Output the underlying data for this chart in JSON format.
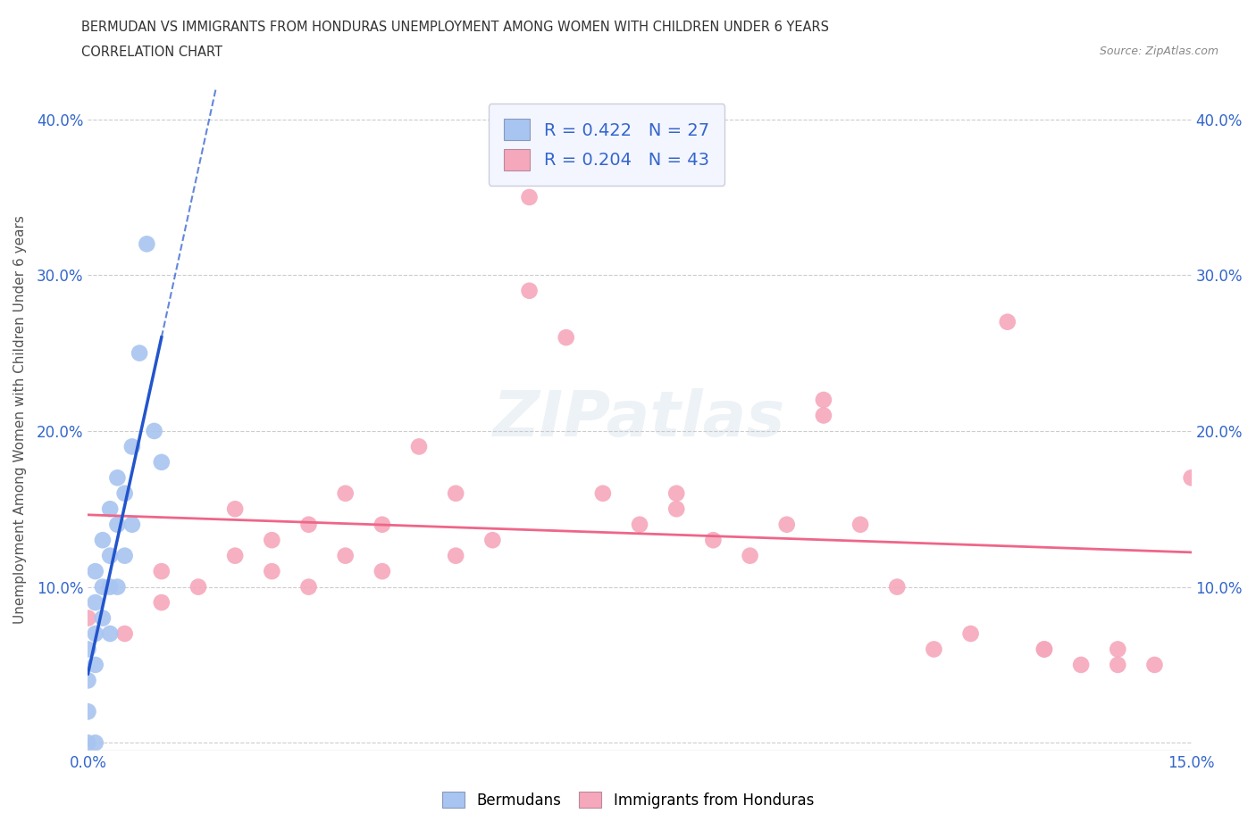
{
  "title_line1": "BERMUDAN VS IMMIGRANTS FROM HONDURAS UNEMPLOYMENT AMONG WOMEN WITH CHILDREN UNDER 6 YEARS",
  "title_line2": "CORRELATION CHART",
  "source": "Source: ZipAtlas.com",
  "ylabel": "Unemployment Among Women with Children Under 6 years",
  "xlim": [
    0.0,
    0.15
  ],
  "ylim": [
    -0.005,
    0.42
  ],
  "x_ticks": [
    0.0,
    0.025,
    0.05,
    0.075,
    0.1,
    0.125,
    0.15
  ],
  "x_tick_labels": [
    "0.0%",
    "",
    "",
    "",
    "",
    "",
    "15.0%"
  ],
  "y_ticks": [
    0.0,
    0.1,
    0.2,
    0.3,
    0.4
  ],
  "y_tick_labels": [
    "",
    "10.0%",
    "20.0%",
    "30.0%",
    "40.0%"
  ],
  "bermuda_R": 0.422,
  "bermuda_N": 27,
  "honduras_R": 0.204,
  "honduras_N": 43,
  "bermuda_color": "#a8c4f0",
  "honduras_color": "#f5a8bc",
  "trendline_bermuda_color": "#2255cc",
  "trendline_honduras_color": "#ee6688",
  "bermuda_x": [
    0.0,
    0.0,
    0.0,
    0.0,
    0.001,
    0.001,
    0.001,
    0.001,
    0.001,
    0.002,
    0.002,
    0.002,
    0.003,
    0.003,
    0.003,
    0.003,
    0.004,
    0.004,
    0.004,
    0.005,
    0.005,
    0.006,
    0.006,
    0.007,
    0.008,
    0.009,
    0.01
  ],
  "bermuda_y": [
    0.0,
    0.02,
    0.04,
    0.06,
    0.0,
    0.05,
    0.07,
    0.09,
    0.11,
    0.08,
    0.1,
    0.13,
    0.07,
    0.1,
    0.12,
    0.15,
    0.1,
    0.14,
    0.17,
    0.12,
    0.16,
    0.14,
    0.19,
    0.25,
    0.32,
    0.2,
    0.18
  ],
  "honduras_x": [
    0.0,
    0.005,
    0.01,
    0.01,
    0.015,
    0.02,
    0.02,
    0.025,
    0.025,
    0.03,
    0.03,
    0.035,
    0.035,
    0.04,
    0.04,
    0.045,
    0.05,
    0.05,
    0.055,
    0.06,
    0.065,
    0.07,
    0.075,
    0.08,
    0.085,
    0.09,
    0.095,
    0.1,
    0.105,
    0.11,
    0.115,
    0.12,
    0.125,
    0.13,
    0.135,
    0.14,
    0.145,
    0.15,
    0.06,
    0.08,
    0.1,
    0.13,
    0.14
  ],
  "honduras_y": [
    0.08,
    0.07,
    0.09,
    0.11,
    0.1,
    0.12,
    0.15,
    0.11,
    0.13,
    0.1,
    0.14,
    0.12,
    0.16,
    0.11,
    0.14,
    0.19,
    0.12,
    0.16,
    0.13,
    0.29,
    0.26,
    0.16,
    0.14,
    0.15,
    0.13,
    0.12,
    0.14,
    0.21,
    0.14,
    0.1,
    0.06,
    0.07,
    0.27,
    0.06,
    0.05,
    0.06,
    0.05,
    0.17,
    0.35,
    0.16,
    0.22,
    0.06,
    0.05
  ],
  "watermark": "ZIPatlas",
  "background_color": "#ffffff",
  "grid_color": "#cccccc"
}
